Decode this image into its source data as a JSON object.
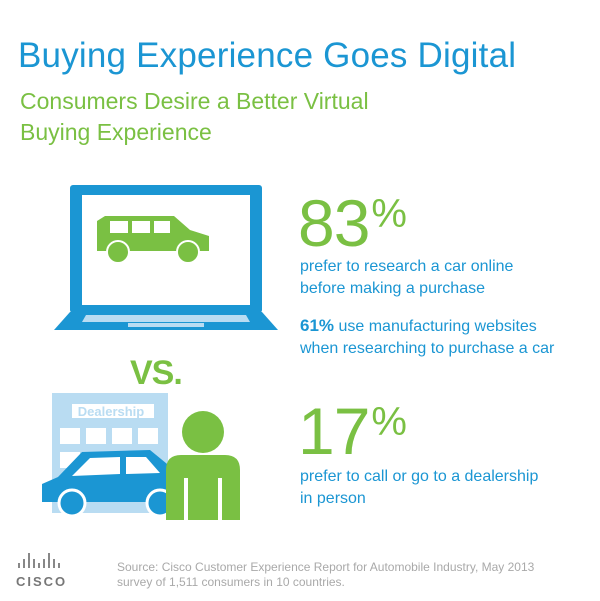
{
  "title": "Buying Experience Goes Digital",
  "subtitle": "Consumers Desire a Better Virtual Buying Experience",
  "stat_online": {
    "value": "83",
    "unit": "%",
    "description_line1": "prefer to research a car online",
    "description_line2": "before making a purchase"
  },
  "stat_manufacturer": {
    "value": "61%",
    "text_line1": " use manufacturing websites",
    "text_line2": "when researching to purchase a car"
  },
  "vs_label": "VS.",
  "dealership_sign": "Dealership",
  "stat_dealer": {
    "value": "17",
    "unit": "%",
    "description_line1": "prefer to call or go to a dealership",
    "description_line2": "in person"
  },
  "source_line1": "Source: Cisco Customer Experience Report for Automobile Industry, May 2013",
  "source_line2": "survey of 1,511 consumers in 10 countries.",
  "logo_text": "CISCO",
  "colors": {
    "blue": "#1b96d3",
    "green": "#7ac043",
    "light_blue": "#b9dcf2",
    "gray": "#a9a9a9"
  },
  "icons": [
    "laptop-icon",
    "suv-icon",
    "dealership-building-icon",
    "car-icon",
    "person-icon",
    "cisco-logo"
  ]
}
